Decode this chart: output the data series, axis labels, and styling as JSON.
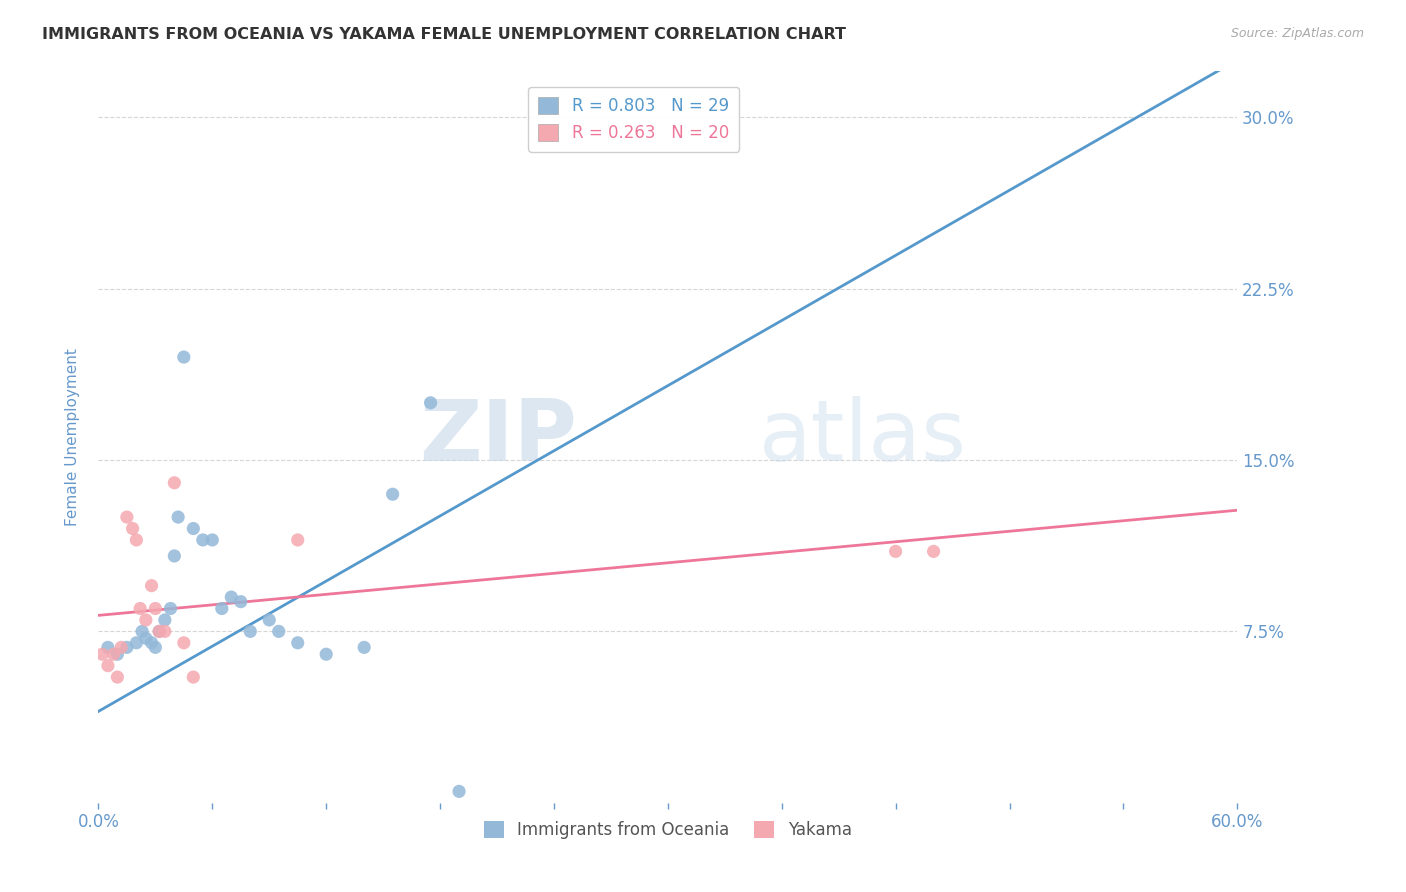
{
  "title": "IMMIGRANTS FROM OCEANIA VS YAKAMA FEMALE UNEMPLOYMENT CORRELATION CHART",
  "source": "Source: ZipAtlas.com",
  "ylabel": "Female Unemployment",
  "x_tick_labels_show": [
    "0.0%",
    "60.0%"
  ],
  "x_ticks": [
    0.0,
    6.0,
    12.0,
    18.0,
    24.0,
    30.0,
    36.0,
    42.0,
    48.0,
    54.0,
    60.0
  ],
  "x_ticks_label_positions": [
    0.0,
    60.0
  ],
  "y_ticks_right": [
    7.5,
    15.0,
    22.5,
    30.0
  ],
  "y_tick_labels_right": [
    "7.5%",
    "15.0%",
    "22.5%",
    "30.0%"
  ],
  "xlim": [
    0.0,
    60.0
  ],
  "ylim": [
    0.0,
    32.0
  ],
  "legend_blue_label": "R = 0.803   N = 29",
  "legend_pink_label": "R = 0.263   N = 20",
  "legend_bottom_blue": "Immigrants from Oceania",
  "legend_bottom_pink": "Yakama",
  "blue_color": "#93b8d8",
  "pink_color": "#f4a8b0",
  "line_blue_color": "#5599cc",
  "line_pink_color": "#ee7799",
  "watermark_zip": "ZIP",
  "watermark_atlas": "atlas",
  "blue_scatter_x": [
    0.5,
    1.0,
    1.5,
    2.0,
    2.3,
    2.5,
    2.8,
    3.0,
    3.2,
    3.5,
    3.8,
    4.0,
    4.2,
    4.5,
    5.0,
    5.5,
    6.0,
    6.5,
    7.0,
    7.5,
    8.0,
    9.0,
    9.5,
    10.5,
    12.0,
    14.0,
    15.5,
    17.5,
    19.0
  ],
  "blue_scatter_y": [
    6.8,
    6.5,
    6.8,
    7.0,
    7.5,
    7.2,
    7.0,
    6.8,
    7.5,
    8.0,
    8.5,
    10.8,
    12.5,
    19.5,
    12.0,
    11.5,
    11.5,
    8.5,
    9.0,
    8.8,
    7.5,
    8.0,
    7.5,
    7.0,
    6.5,
    6.8,
    13.5,
    17.5,
    0.5
  ],
  "pink_scatter_x": [
    0.2,
    0.5,
    0.8,
    1.0,
    1.2,
    1.5,
    1.8,
    2.0,
    2.2,
    2.5,
    2.8,
    3.0,
    3.2,
    3.5,
    4.0,
    4.5,
    10.5,
    42.0,
    44.0,
    5.0
  ],
  "pink_scatter_y": [
    6.5,
    6.0,
    6.5,
    5.5,
    6.8,
    12.5,
    12.0,
    11.5,
    8.5,
    8.0,
    9.5,
    8.5,
    7.5,
    7.5,
    14.0,
    7.0,
    11.5,
    11.0,
    11.0,
    5.5
  ],
  "blue_line_x": [
    0.0,
    60.0
  ],
  "blue_line_y": [
    4.0,
    32.5
  ],
  "pink_line_x": [
    0.0,
    60.0
  ],
  "pink_line_y": [
    8.2,
    12.8
  ],
  "background_color": "#ffffff",
  "grid_color": "#cccccc",
  "title_color": "#333333",
  "axis_label_color": "#6699cc",
  "tick_color": "#6699cc"
}
